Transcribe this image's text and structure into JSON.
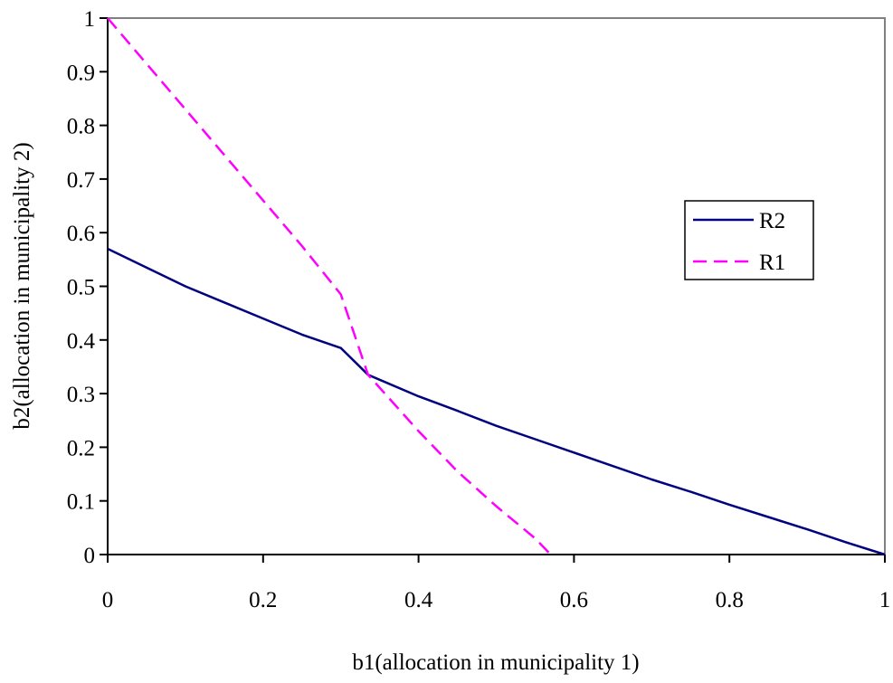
{
  "chart_data": {
    "type": "line",
    "xlabel": "b1(allocation in municipality 1)",
    "ylabel": "b2(allocation in municipality 2)",
    "xlim": [
      0,
      1
    ],
    "ylim": [
      0,
      1
    ],
    "x_ticks": [
      "0",
      "0.2",
      "0.4",
      "0.6",
      "0.8",
      "1"
    ],
    "y_ticks": [
      "0",
      "0.1",
      "0.2",
      "0.3",
      "0.4",
      "0.5",
      "0.6",
      "0.7",
      "0.8",
      "0.9",
      "1"
    ],
    "grid": false,
    "legend_position": "right",
    "series": [
      {
        "name": "R2",
        "color": "#000080",
        "style": "solid",
        "points": [
          [
            0,
            0.57
          ],
          [
            0.05,
            0.535
          ],
          [
            0.1,
            0.5
          ],
          [
            0.15,
            0.47
          ],
          [
            0.2,
            0.44
          ],
          [
            0.25,
            0.41
          ],
          [
            0.3,
            0.385
          ],
          [
            0.335,
            0.335
          ],
          [
            0.4,
            0.295
          ],
          [
            0.45,
            0.268
          ],
          [
            0.5,
            0.24
          ],
          [
            0.55,
            0.215
          ],
          [
            0.6,
            0.19
          ],
          [
            0.65,
            0.165
          ],
          [
            0.7,
            0.14
          ],
          [
            0.75,
            0.117
          ],
          [
            0.8,
            0.093
          ],
          [
            0.85,
            0.07
          ],
          [
            0.9,
            0.047
          ],
          [
            0.95,
            0.023
          ],
          [
            1.0,
            0.0
          ]
        ]
      },
      {
        "name": "R1",
        "color": "#FF00FF",
        "style": "dashed",
        "points": [
          [
            0,
            1.0
          ],
          [
            0.05,
            0.915
          ],
          [
            0.1,
            0.83
          ],
          [
            0.15,
            0.745
          ],
          [
            0.2,
            0.66
          ],
          [
            0.25,
            0.575
          ],
          [
            0.3,
            0.485
          ],
          [
            0.335,
            0.335
          ],
          [
            0.4,
            0.23
          ],
          [
            0.45,
            0.155
          ],
          [
            0.5,
            0.09
          ],
          [
            0.55,
            0.03
          ],
          [
            0.57,
            0.0
          ]
        ]
      }
    ]
  }
}
